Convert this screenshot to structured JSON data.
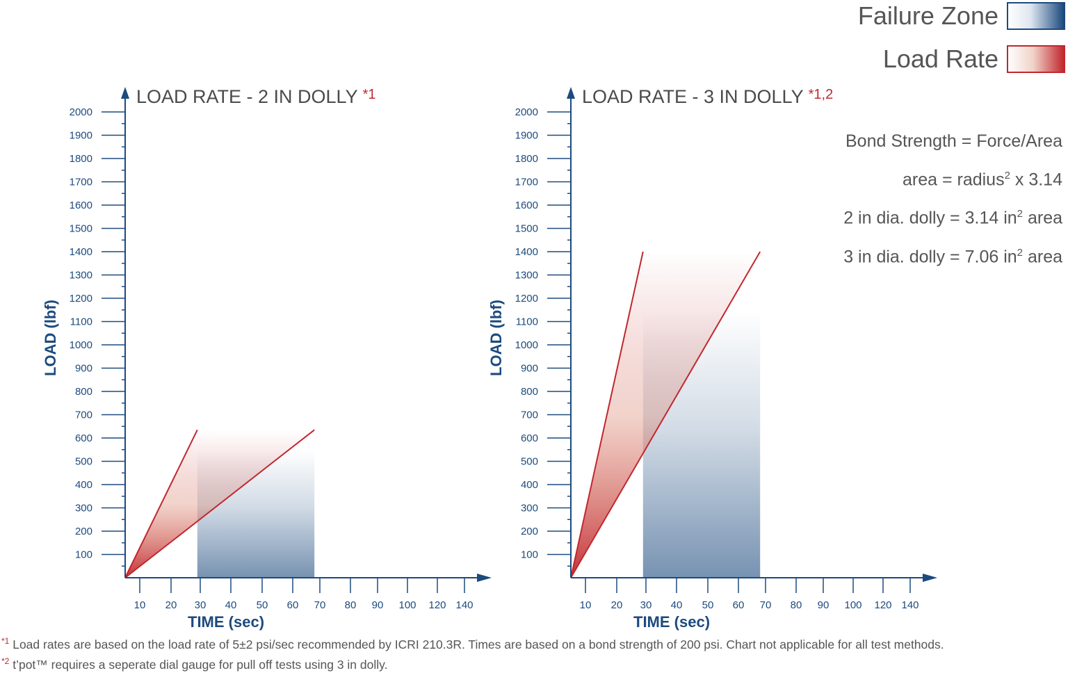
{
  "legend": {
    "failure_zone": {
      "label": "Failure Zone",
      "color": "#1c4a7e"
    },
    "load_rate": {
      "label": "Load Rate",
      "color": "#c1272d"
    }
  },
  "formulas": {
    "line1": "Bond Strength = Force/Area",
    "line2_prefix": "area = radius",
    "line2_sup": "2",
    "line2_suffix": " x 3.14",
    "line3_prefix": "2 in dia. dolly = 3.14 in",
    "line3_sup": "2",
    "line3_suffix": " area",
    "line4_prefix": "3 in dia. dolly = 7.06 in",
    "line4_sup": "2",
    "line4_suffix": " area"
  },
  "footnotes": {
    "note1_mark": "*1",
    "note1_text": " Load rates are based on the load rate of 5±2 psi/sec recommended by ICRI 210.3R.  Times are based on a bond strength of 200 psi.  Chart not applicable for all test methods.",
    "note2_mark": "*2",
    "note2_text": " t’pot™ requires a seperate dial gauge for pull off tests using 3 in dolly."
  },
  "chart_data": [
    {
      "type": "line",
      "title": "LOAD RATE - 2 IN DOLLY",
      "title_note": "*1",
      "xlabel": "TIME (sec)",
      "ylabel": "LOAD (lbf)",
      "x_ticks": [
        10,
        20,
        30,
        40,
        50,
        60,
        70,
        80,
        90,
        100,
        120,
        140
      ],
      "y_ticks": [
        100,
        200,
        300,
        400,
        500,
        600,
        700,
        800,
        900,
        1000,
        1100,
        1200,
        1300,
        1400,
        1500,
        1600,
        1700,
        1800,
        1900,
        2000
      ],
      "ylim": [
        0,
        2000
      ],
      "load_rate_lines": [
        {
          "points": [
            [
              0,
              0
            ],
            [
              29,
              635
            ]
          ]
        },
        {
          "points": [
            [
              0,
              0
            ],
            [
              68,
              635
            ]
          ]
        }
      ],
      "failure_zone": {
        "x": [
          29,
          68
        ],
        "y": [
          0,
          550
        ]
      }
    },
    {
      "type": "line",
      "title": "LOAD RATE - 3 IN DOLLY",
      "title_note": "*1,2",
      "xlabel": "TIME (sec)",
      "ylabel": "LOAD (lbf)",
      "x_ticks": [
        10,
        20,
        30,
        40,
        50,
        60,
        70,
        80,
        90,
        100,
        120,
        140
      ],
      "y_ticks": [
        100,
        200,
        300,
        400,
        500,
        600,
        700,
        800,
        900,
        1000,
        1100,
        1200,
        1300,
        1400,
        1500,
        1600,
        1700,
        1800,
        1900,
        2000
      ],
      "ylim": [
        0,
        2000
      ],
      "load_rate_lines": [
        {
          "points": [
            [
              0,
              0
            ],
            [
              29,
              1400
            ]
          ]
        },
        {
          "points": [
            [
              0,
              0
            ],
            [
              68,
              1400
            ]
          ]
        }
      ],
      "failure_zone": {
        "x": [
          29,
          68
        ],
        "y": [
          0,
          1150
        ]
      }
    }
  ]
}
